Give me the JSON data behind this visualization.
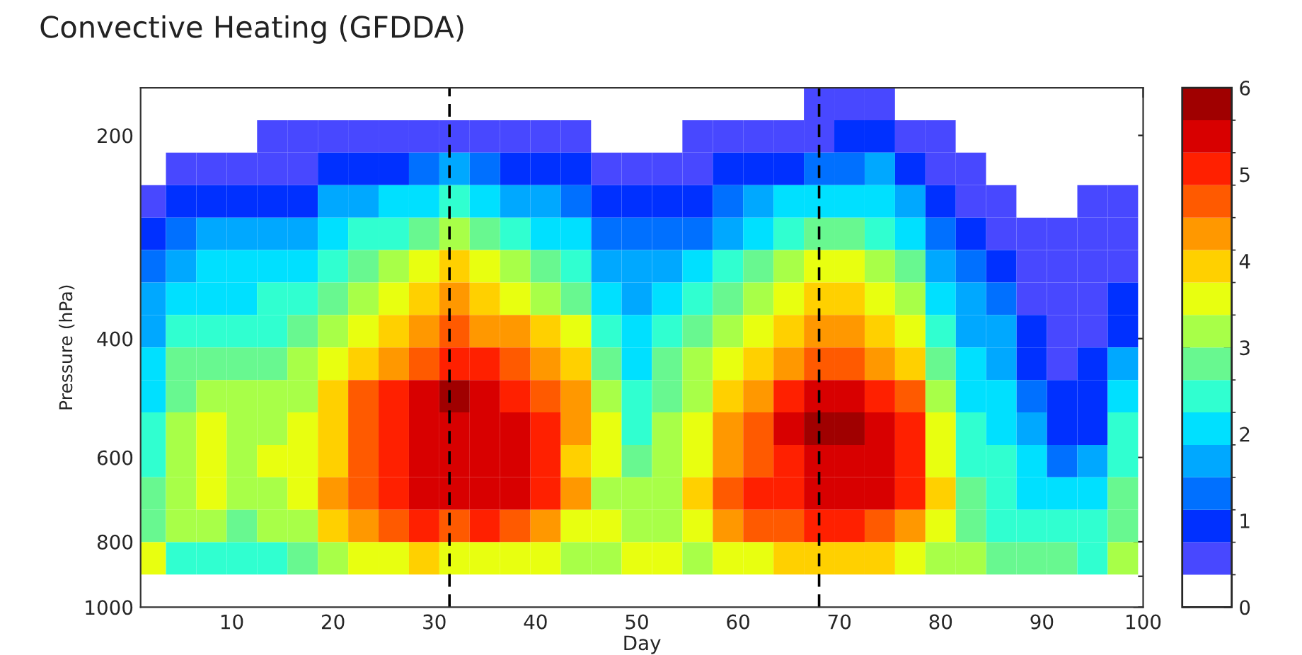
{
  "chart_data": {
    "type": "heatmap",
    "title": "Convective Heating (GFDDA)",
    "xlabel": "Day",
    "ylabel": "Pressure (hPa)",
    "x": [
      2,
      5,
      8,
      11,
      14,
      17,
      20,
      23,
      26,
      29,
      32,
      35,
      38,
      41,
      44,
      47,
      50,
      53,
      56,
      59,
      62,
      65,
      68,
      71,
      74,
      77,
      80,
      83,
      86,
      89,
      92,
      95,
      98
    ],
    "xlim": [
      1,
      100
    ],
    "xticks": [
      10,
      20,
      30,
      40,
      50,
      60,
      70,
      80,
      90,
      100
    ],
    "log": "y",
    "ylim": [
      1000,
      170
    ],
    "yticks": [
      200,
      400,
      600,
      800,
      {
        "value": 900,
        "label": null
      },
      1000
    ],
    "cells": [
      [
        0.2,
        0.2,
        0.2,
        0.2,
        0.2,
        0.2,
        0.2,
        0.2,
        0.2,
        0.2,
        0.2,
        0.2,
        0.2,
        0.2,
        0.2,
        0.2,
        0.2,
        0.2,
        0.2,
        0.2,
        0.2,
        0.2,
        0.5,
        0.5,
        0.5,
        0.2,
        0.2,
        0.2,
        0.2,
        0.2,
        0.2,
        0.2,
        0.2
      ],
      [
        0.2,
        0.2,
        0.2,
        0.2,
        0.5,
        0.5,
        0.5,
        0.5,
        0.5,
        0.5,
        0.5,
        0.5,
        0.5,
        0.5,
        0.5,
        0.2,
        0.2,
        0.2,
        0.5,
        0.5,
        0.5,
        0.5,
        0.5,
        0.9,
        0.9,
        0.5,
        0.5,
        0.2,
        0.2,
        0.2,
        0.2,
        0.2,
        0.2
      ],
      [
        0.2,
        0.5,
        0.5,
        0.5,
        0.5,
        0.5,
        0.9,
        0.9,
        0.9,
        1.3,
        1.7,
        1.3,
        0.9,
        0.9,
        0.9,
        0.5,
        0.5,
        0.5,
        0.5,
        0.9,
        0.9,
        0.9,
        1.3,
        1.3,
        1.7,
        0.9,
        0.5,
        0.5,
        0.2,
        0.2,
        0.2,
        0.2,
        0.2
      ],
      [
        0.5,
        0.9,
        0.9,
        0.9,
        0.9,
        0.9,
        1.7,
        1.7,
        2.0,
        2.0,
        2.4,
        2.0,
        1.7,
        1.7,
        1.3,
        0.9,
        0.9,
        0.9,
        0.9,
        1.3,
        1.7,
        2.0,
        2.0,
        2.0,
        2.0,
        1.7,
        0.9,
        0.5,
        0.5,
        0.2,
        0.2,
        0.5,
        0.5
      ],
      [
        0.9,
        1.3,
        1.7,
        1.7,
        1.7,
        1.7,
        2.0,
        2.4,
        2.4,
        2.8,
        3.2,
        2.8,
        2.4,
        2.0,
        2.0,
        1.3,
        1.3,
        1.3,
        1.3,
        1.7,
        2.0,
        2.4,
        2.8,
        2.8,
        2.4,
        2.0,
        1.3,
        0.9,
        0.5,
        0.5,
        0.5,
        0.5,
        0.5
      ],
      [
        1.3,
        1.7,
        2.0,
        2.0,
        2.0,
        2.0,
        2.4,
        2.8,
        3.2,
        3.5,
        3.9,
        3.5,
        3.2,
        2.8,
        2.4,
        1.7,
        1.7,
        1.7,
        2.0,
        2.4,
        2.8,
        3.2,
        3.5,
        3.5,
        3.2,
        2.8,
        1.7,
        1.3,
        0.9,
        0.5,
        0.5,
        0.5,
        0.5
      ],
      [
        1.7,
        2.0,
        2.0,
        2.0,
        2.4,
        2.4,
        2.8,
        3.2,
        3.5,
        3.9,
        4.3,
        3.9,
        3.5,
        3.2,
        2.8,
        2.0,
        1.7,
        2.0,
        2.4,
        2.8,
        3.2,
        3.5,
        3.9,
        3.9,
        3.5,
        3.2,
        2.0,
        1.7,
        1.3,
        0.5,
        0.5,
        0.5,
        0.9
      ],
      [
        1.7,
        2.4,
        2.4,
        2.4,
        2.4,
        2.8,
        3.2,
        3.5,
        3.9,
        4.3,
        4.7,
        4.3,
        4.3,
        3.9,
        3.5,
        2.4,
        2.0,
        2.4,
        2.8,
        3.2,
        3.5,
        3.9,
        4.3,
        4.3,
        3.9,
        3.5,
        2.4,
        1.7,
        1.7,
        0.9,
        0.5,
        0.5,
        0.9
      ],
      [
        2.0,
        2.8,
        2.8,
        2.8,
        2.8,
        3.2,
        3.5,
        3.9,
        4.3,
        4.7,
        5.0,
        5.0,
        4.7,
        4.3,
        3.9,
        2.8,
        2.0,
        2.8,
        3.2,
        3.5,
        3.9,
        4.3,
        4.7,
        4.7,
        4.3,
        3.9,
        2.8,
        2.0,
        1.7,
        0.9,
        0.5,
        0.9,
        1.7
      ],
      [
        2.0,
        2.8,
        3.2,
        3.2,
        3.2,
        3.2,
        3.9,
        4.7,
        5.0,
        5.4,
        5.8,
        5.4,
        5.0,
        4.7,
        4.3,
        3.2,
        2.4,
        2.8,
        3.2,
        3.9,
        4.3,
        5.0,
        5.4,
        5.4,
        5.0,
        4.7,
        3.2,
        2.0,
        2.0,
        1.3,
        0.9,
        0.9,
        2.0
      ],
      [
        2.4,
        3.2,
        3.5,
        3.2,
        3.2,
        3.5,
        3.9,
        4.7,
        5.0,
        5.4,
        5.4,
        5.4,
        5.4,
        5.0,
        4.3,
        3.5,
        2.4,
        3.2,
        3.5,
        4.3,
        4.7,
        5.4,
        5.8,
        5.8,
        5.4,
        5.0,
        3.5,
        2.4,
        2.0,
        1.7,
        0.9,
        0.9,
        2.4
      ],
      [
        2.4,
        3.2,
        3.5,
        3.2,
        3.5,
        3.5,
        3.9,
        4.7,
        5.0,
        5.4,
        5.4,
        5.4,
        5.4,
        5.0,
        3.9,
        3.5,
        2.8,
        3.2,
        3.5,
        4.3,
        4.7,
        5.0,
        5.4,
        5.4,
        5.4,
        5.0,
        3.5,
        2.4,
        2.4,
        2.0,
        1.3,
        1.7,
        2.4
      ],
      [
        2.8,
        3.2,
        3.5,
        3.2,
        3.2,
        3.5,
        4.3,
        4.7,
        5.0,
        5.4,
        5.4,
        5.4,
        5.4,
        5.0,
        4.3,
        3.2,
        3.2,
        3.2,
        3.9,
        4.7,
        5.0,
        5.0,
        5.4,
        5.4,
        5.4,
        5.0,
        3.9,
        2.8,
        2.4,
        2.0,
        2.0,
        2.0,
        2.8
      ],
      [
        2.8,
        3.2,
        3.2,
        2.8,
        3.2,
        3.2,
        3.9,
        4.3,
        4.7,
        5.0,
        4.7,
        5.0,
        4.7,
        4.3,
        3.5,
        3.5,
        3.2,
        3.2,
        3.5,
        4.3,
        4.7,
        4.7,
        5.0,
        5.0,
        4.7,
        4.3,
        3.5,
        2.8,
        2.4,
        2.4,
        2.4,
        2.4,
        2.8
      ],
      [
        3.5,
        2.4,
        2.4,
        2.4,
        2.4,
        2.8,
        3.2,
        3.5,
        3.5,
        3.9,
        3.5,
        3.5,
        3.5,
        3.5,
        3.2,
        3.2,
        3.5,
        3.5,
        3.2,
        3.5,
        3.5,
        3.9,
        3.9,
        3.9,
        3.9,
        3.5,
        3.2,
        3.2,
        2.8,
        2.8,
        2.8,
        2.4,
        3.2
      ],
      [
        0.2,
        0.2,
        0.2,
        0.2,
        0.2,
        0.2,
        0.2,
        0.2,
        0.2,
        0.2,
        0.2,
        0.2,
        0.2,
        0.2,
        0.2,
        0.2,
        0.2,
        0.2,
        0.2,
        0.2,
        0.2,
        0.2,
        0.2,
        0.2,
        0.2,
        0.2,
        0.2,
        0.2,
        0.2,
        0.2,
        0.2,
        0.2,
        0.2
      ]
    ],
    "clim": [
      0,
      6
    ],
    "cticks": [
      0,
      1,
      2,
      3,
      4,
      5,
      6
    ],
    "ref_lines": [
      {
        "axis": "x",
        "value": 31.5,
        "color": "#000000",
        "line_style": "dashed"
      },
      {
        "axis": "x",
        "value": 68,
        "color": "#000000",
        "line_style": "dashed"
      }
    ]
  }
}
